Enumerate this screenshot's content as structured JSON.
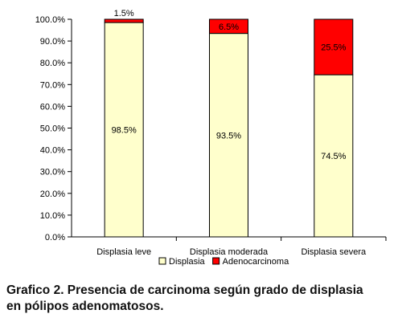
{
  "chart_data": {
    "type": "bar",
    "stacked": true,
    "categories": [
      "Displasia leve",
      "Displasia moderada",
      "Displasia severa"
    ],
    "series": [
      {
        "name": "Displasia",
        "values": [
          98.5,
          93.5,
          74.5
        ],
        "labels": [
          "98.5%",
          "93.5%",
          "74.5%"
        ],
        "color": "#FFFFCC"
      },
      {
        "name": "Adenocarcinoma",
        "values": [
          1.5,
          6.5,
          25.5
        ],
        "labels": [
          "1.5%",
          "6.5%",
          "25.5%"
        ],
        "color": "#FF0000"
      }
    ],
    "ylim": [
      0,
      100
    ],
    "yticks": [
      "0.0%",
      "10.0%",
      "20.0%",
      "30.0%",
      "40.0%",
      "50.0%",
      "60.0%",
      "70.0%",
      "80.0%",
      "90.0%",
      "100.0%"
    ],
    "grid": false,
    "legend": "bottom"
  },
  "caption": {
    "line1": "Grafico 2. Presencia de carcinoma según grado de displasia",
    "line2": "en pólipos adenomatosos."
  }
}
